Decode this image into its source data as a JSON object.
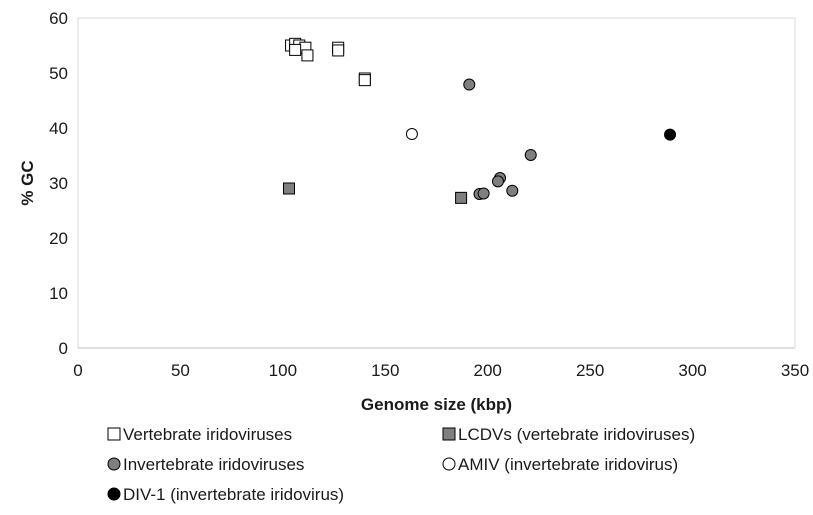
{
  "chart_data": {
    "type": "scatter",
    "title": "",
    "xlabel": "Genome size (kbp)",
    "ylabel": "% GC",
    "xlim": [
      0,
      350
    ],
    "ylim": [
      0,
      60
    ],
    "xticks": [
      0,
      50,
      100,
      150,
      200,
      250,
      300,
      350
    ],
    "yticks": [
      0,
      10,
      20,
      30,
      40,
      50,
      60
    ],
    "grid": false,
    "legend_position": "bottom",
    "series": [
      {
        "name": "Vertebrate iridoviruses",
        "marker": "square",
        "fill": "#ffffff",
        "stroke": "#000000",
        "points": [
          [
            104,
            55
          ],
          [
            106,
            55.3
          ],
          [
            108,
            55
          ],
          [
            111,
            54.6
          ],
          [
            106,
            54.2
          ],
          [
            112,
            53.2
          ],
          [
            127,
            54.6
          ],
          [
            127,
            54.1
          ],
          [
            140,
            49.0
          ],
          [
            140,
            48.7
          ]
        ]
      },
      {
        "name": "LCDVs (vertebrate iridoviruses)",
        "marker": "square",
        "fill": "#7f7f7f",
        "stroke": "#000000",
        "points": [
          [
            103,
            29.0
          ],
          [
            187,
            27.3
          ]
        ]
      },
      {
        "name": "Invertebrate iridoviruses",
        "marker": "circle",
        "fill": "#7f7f7f",
        "stroke": "#000000",
        "points": [
          [
            191,
            47.9
          ],
          [
            221,
            35.1
          ],
          [
            206,
            30.9
          ],
          [
            205,
            30.3
          ],
          [
            212,
            28.6
          ],
          [
            196,
            28.0
          ],
          [
            198,
            28.1
          ]
        ]
      },
      {
        "name": "AMIV (invertebrate iridovirus)",
        "marker": "circle",
        "fill": "#ffffff",
        "stroke": "#000000",
        "points": [
          [
            163,
            38.9
          ]
        ]
      },
      {
        "name": "DIV-1 (invertebrate iridovirus)",
        "marker": "circle",
        "fill": "#000000",
        "stroke": "#000000",
        "points": [
          [
            289,
            38.8
          ]
        ]
      }
    ]
  }
}
